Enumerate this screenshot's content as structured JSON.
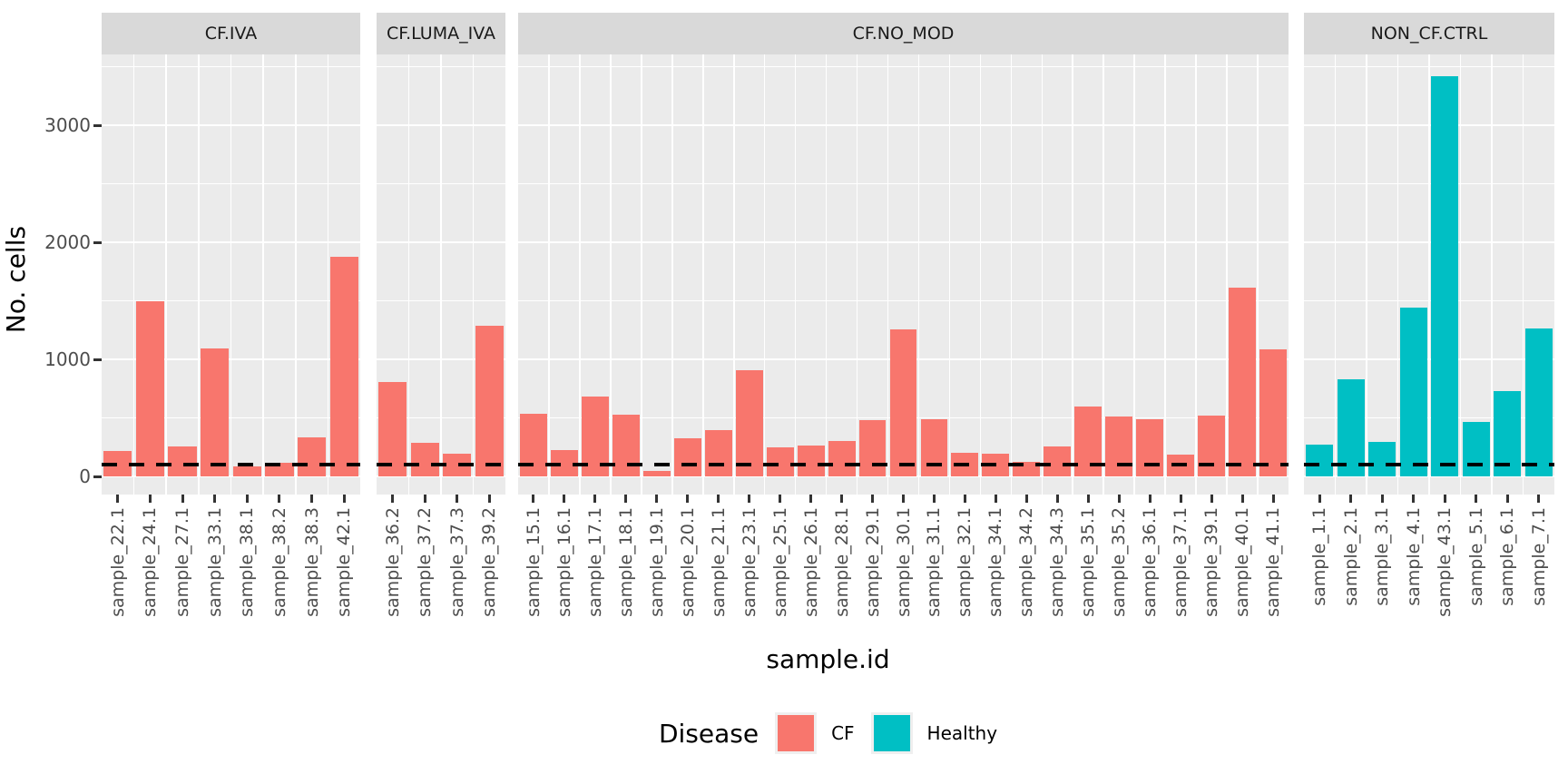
{
  "chart_data": {
    "type": "bar",
    "title": "",
    "xlabel": "sample.id",
    "ylabel": "No. cells",
    "ylim": [
      0,
      3600
    ],
    "yticks": [
      0,
      1000,
      2000,
      3000
    ],
    "y_minor_step": 500,
    "grid": true,
    "reference_line": {
      "y": 100,
      "style": "dashed",
      "color": "#000000"
    },
    "legend": {
      "title": "Disease",
      "position": "bottom",
      "entries": [
        {
          "label": "CF",
          "color": "#F8766D"
        },
        {
          "label": "Healthy",
          "color": "#00BFC4"
        }
      ]
    },
    "facets": [
      {
        "label": "CF.IVA",
        "disease": "CF",
        "samples": [
          "sample_22.1",
          "sample_24.1",
          "sample_27.1",
          "sample_33.1",
          "sample_38.1",
          "sample_38.2",
          "sample_38.3",
          "sample_42.1"
        ],
        "values": [
          220,
          1500,
          255,
          1095,
          85,
          115,
          335,
          1875
        ]
      },
      {
        "label": "CF.LUMA_IVA",
        "disease": "CF",
        "samples": [
          "sample_36.2",
          "sample_37.2",
          "sample_37.3",
          "sample_39.2"
        ],
        "values": [
          810,
          285,
          195,
          1285
        ]
      },
      {
        "label": "CF.NO_MOD",
        "disease": "CF",
        "samples": [
          "sample_15.1",
          "sample_16.1",
          "sample_17.1",
          "sample_18.1",
          "sample_19.1",
          "sample_20.1",
          "sample_21.1",
          "sample_23.1",
          "sample_25.1",
          "sample_26.1",
          "sample_28.1",
          "sample_29.1",
          "sample_30.1",
          "sample_31.1",
          "sample_32.1",
          "sample_34.1",
          "sample_34.2",
          "sample_34.3",
          "sample_35.1",
          "sample_35.2",
          "sample_36.1",
          "sample_37.1",
          "sample_39.1",
          "sample_40.1",
          "sample_41.1"
        ],
        "values": [
          535,
          225,
          685,
          525,
          45,
          325,
          395,
          905,
          245,
          265,
          300,
          480,
          1255,
          490,
          205,
          195,
          125,
          255,
          600,
          510,
          490,
          190,
          520,
          1615,
          1085
        ]
      },
      {
        "label": "NON_CF.CTRL",
        "disease": "Healthy",
        "samples": [
          "sample_1.1",
          "sample_2.1",
          "sample_3.1",
          "sample_4.1",
          "sample_43.1",
          "sample_5.1",
          "sample_6.1",
          "sample_7.1"
        ],
        "values": [
          270,
          830,
          295,
          1445,
          3420,
          465,
          730,
          1265
        ]
      }
    ]
  },
  "colors": {
    "panel_bg": "#EBEBEB",
    "strip_bg": "#D9D9D9",
    "gridline": "#FFFFFF",
    "axis_text": "#4D4D4D",
    "tick_mark": "#333333",
    "reference_line": "#000000"
  }
}
